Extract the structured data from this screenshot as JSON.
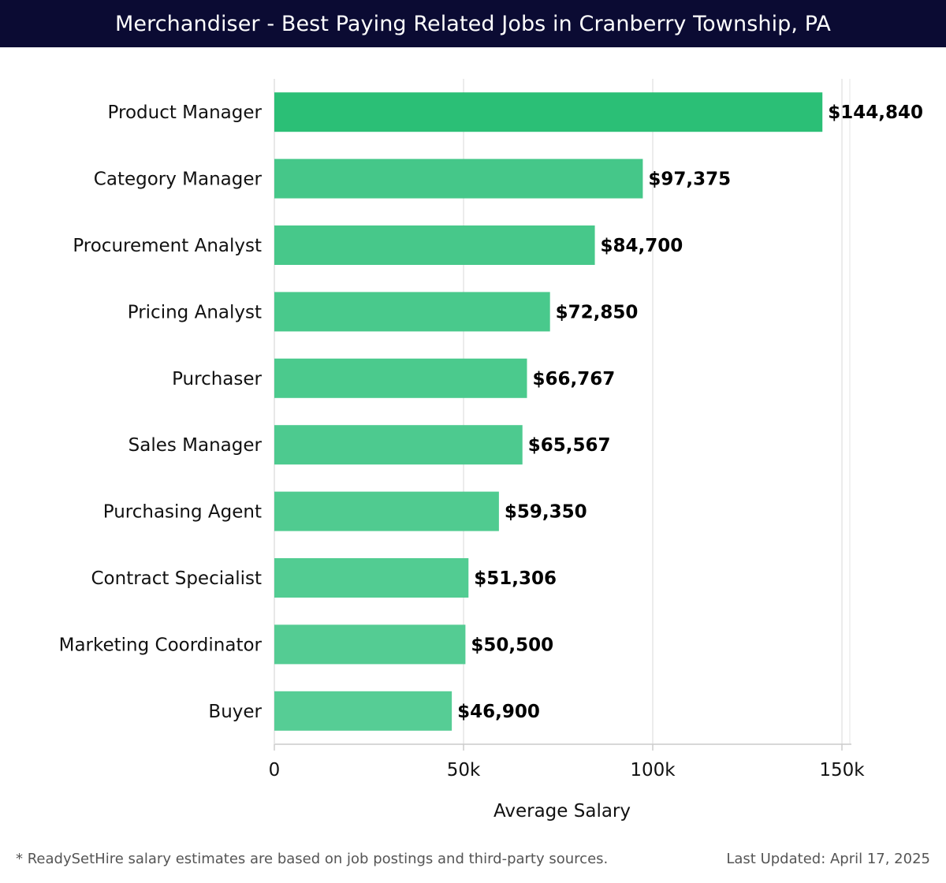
{
  "header": {
    "title": "Merchandiser - Best Paying Related Jobs in Cranberry Township, PA"
  },
  "footer": {
    "note": "* ReadySetHire salary estimates are based on job postings and third-party sources.",
    "updated": "Last Updated: April 17, 2025"
  },
  "colors": {
    "header_bg": "#0b0b33",
    "bar_top": "#2bbf76",
    "bar_base": "#56cd95",
    "grid": "#e5e5e5",
    "axis": "#cccccc"
  },
  "chart_data": {
    "type": "bar",
    "orientation": "horizontal",
    "title": "Merchandiser - Best Paying Related Jobs in Cranberry Township, PA",
    "xlabel": "Average Salary",
    "ylabel": "",
    "xlim": [
      0,
      150000
    ],
    "x_ticks": [
      0,
      50000,
      100000,
      150000
    ],
    "x_tick_labels": [
      "0",
      "50k",
      "100k",
      "150k"
    ],
    "grid": true,
    "categories": [
      "Product Manager",
      "Category Manager",
      "Procurement Analyst",
      "Pricing Analyst",
      "Purchaser",
      "Sales Manager",
      "Purchasing Agent",
      "Contract Specialist",
      "Marketing Coordinator",
      "Buyer"
    ],
    "values": [
      144840,
      97375,
      84700,
      72850,
      66767,
      65567,
      59350,
      51306,
      50500,
      46900
    ],
    "value_labels": [
      "$144,840",
      "$97,375",
      "$84,700",
      "$72,850",
      "$66,767",
      "$65,567",
      "$59,350",
      "$51,306",
      "$50,500",
      "$46,900"
    ]
  }
}
